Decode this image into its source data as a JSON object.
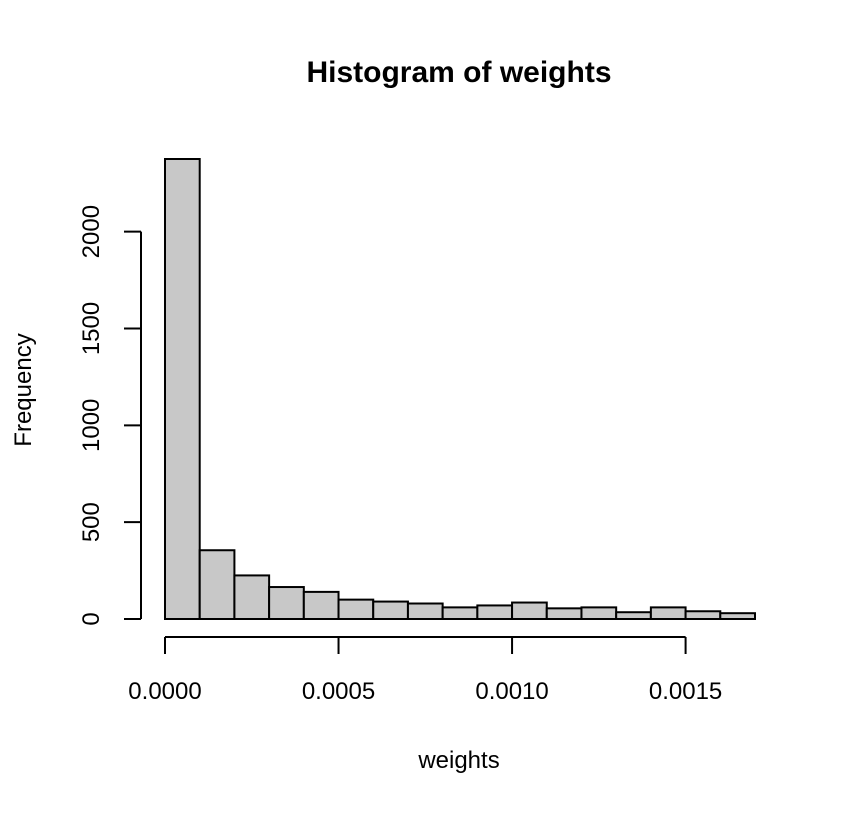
{
  "chart_data": {
    "type": "bar",
    "title": "Histogram of weights",
    "xlabel": "weights",
    "ylabel": "Frequency",
    "bin_edges": [
      0.0,
      0.0001,
      0.0002,
      0.0003,
      0.0004,
      0.0005,
      0.0006,
      0.0007,
      0.0008,
      0.0009,
      0.001,
      0.0011,
      0.0012,
      0.0013,
      0.0014,
      0.0015,
      0.0016,
      0.0017
    ],
    "values": [
      2375,
      355,
      225,
      165,
      140,
      100,
      90,
      80,
      60,
      70,
      85,
      55,
      60,
      35,
      60,
      40,
      30
    ],
    "x_ticks": [
      0.0,
      0.0005,
      0.001,
      0.0015
    ],
    "x_tick_labels": [
      "0.0000",
      "0.0005",
      "0.0010",
      "0.0015"
    ],
    "y_ticks": [
      0,
      500,
      1000,
      1500,
      2000
    ],
    "y_tick_labels": [
      "0",
      "500",
      "1000",
      "1500",
      "2000"
    ],
    "xlim": [
      0.0,
      0.0017
    ],
    "ylim": [
      0,
      2375
    ],
    "bar_color": "#c8c8c8",
    "grid": false
  }
}
